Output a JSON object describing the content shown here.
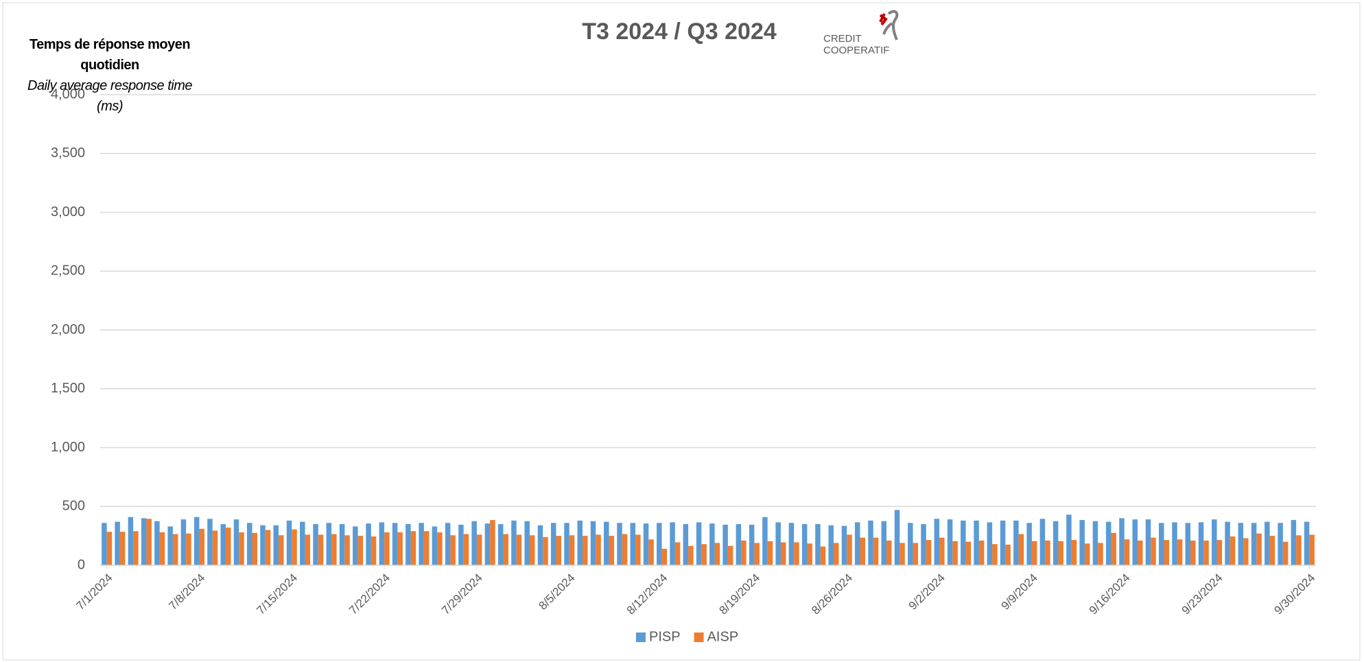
{
  "chart_data": {
    "type": "bar",
    "title": "T3 2024 / Q3 2024",
    "y_axis_title": "Temps de réponse moyen quotidien",
    "y_axis_subtitle": "Daily average response time (ms)",
    "logo_text": [
      "CREDIT",
      "COOPERATIF"
    ],
    "categories": [
      "7/1/2024",
      null,
      null,
      null,
      null,
      null,
      null,
      "7/8/2024",
      null,
      null,
      null,
      null,
      null,
      null,
      "7/15/2024",
      null,
      null,
      null,
      null,
      null,
      null,
      "7/22/2024",
      null,
      null,
      null,
      null,
      null,
      null,
      "7/29/2024",
      null,
      null,
      null,
      null,
      null,
      null,
      "8/5/2024",
      null,
      null,
      null,
      null,
      null,
      null,
      "8/12/2024",
      null,
      null,
      null,
      null,
      null,
      null,
      "8/19/2024",
      null,
      null,
      null,
      null,
      null,
      null,
      "8/26/2024",
      null,
      null,
      null,
      null,
      null,
      null,
      "9/2/2024",
      null,
      null,
      null,
      null,
      null,
      null,
      "9/9/2024",
      null,
      null,
      null,
      null,
      null,
      null,
      "9/16/2024",
      null,
      null,
      null,
      null,
      null,
      null,
      "9/23/2024",
      null,
      null,
      null,
      null,
      null,
      null,
      "9/30/2024"
    ],
    "series": [
      {
        "name": "PISP",
        "color": "#5b9bd5",
        "values": [
          360,
          370,
          410,
          400,
          375,
          330,
          390,
          410,
          395,
          350,
          390,
          360,
          340,
          340,
          380,
          370,
          350,
          360,
          350,
          330,
          355,
          365,
          360,
          350,
          360,
          330,
          360,
          345,
          375,
          355,
          350,
          380,
          375,
          340,
          360,
          360,
          380,
          375,
          370,
          360,
          360,
          355,
          360,
          365,
          350,
          365,
          355,
          345,
          350,
          345,
          410,
          365,
          360,
          350,
          350,
          340,
          335,
          365,
          380,
          375,
          470,
          360,
          350,
          395,
          390,
          380,
          380,
          365,
          380,
          380,
          360,
          395,
          375,
          430,
          385,
          375,
          370,
          400,
          390,
          390,
          360,
          365,
          360,
          365,
          390,
          370,
          360,
          360,
          370,
          360,
          385,
          370
        ]
      },
      {
        "name": "AISP",
        "color": "#ed7d31",
        "values": [
          285,
          285,
          290,
          395,
          280,
          265,
          270,
          310,
          295,
          320,
          280,
          275,
          300,
          255,
          305,
          260,
          260,
          265,
          255,
          250,
          245,
          280,
          280,
          290,
          290,
          280,
          255,
          265,
          260,
          385,
          265,
          260,
          255,
          240,
          250,
          255,
          250,
          260,
          250,
          265,
          260,
          220,
          140,
          195,
          165,
          180,
          190,
          165,
          210,
          190,
          205,
          195,
          195,
          185,
          160,
          190,
          260,
          235,
          235,
          210,
          190,
          190,
          215,
          235,
          205,
          200,
          210,
          180,
          175,
          265,
          205,
          210,
          205,
          215,
          185,
          190,
          275,
          220,
          210,
          235,
          215,
          220,
          210,
          210,
          215,
          245,
          230,
          270,
          250,
          200,
          255,
          260
        ]
      }
    ],
    "ylim": [
      0,
      4000
    ],
    "yticks": [
      0,
      500,
      {
        "value": 1000,
        "label": "1,000"
      },
      {
        "value": 1500,
        "label": "1,500"
      },
      {
        "value": 2000,
        "label": "2,000"
      },
      {
        "value": 2500,
        "label": "2,500"
      },
      {
        "value": 3000,
        "label": "3,000"
      },
      {
        "value": 3500,
        "label": "3,500"
      },
      {
        "value": 4000,
        "label": "4,000"
      }
    ],
    "grid": true,
    "legend": "bottom"
  }
}
